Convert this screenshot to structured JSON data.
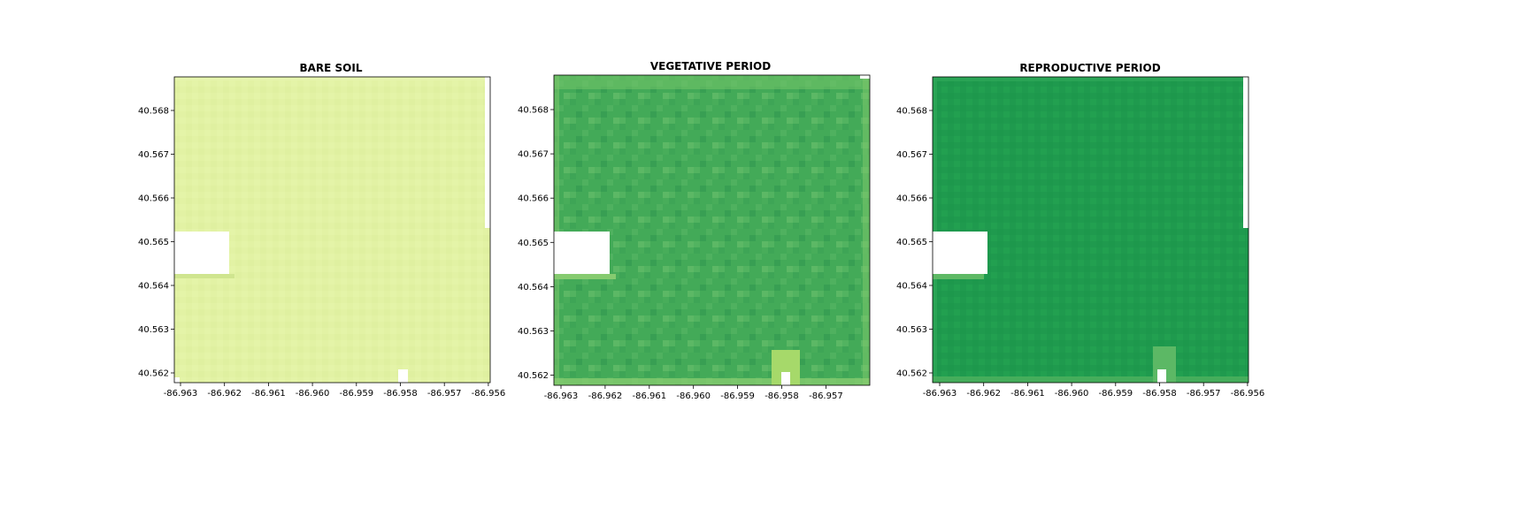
{
  "chart_data": [
    {
      "type": "heatmap",
      "title": "BARE SOIL",
      "xlabel": "",
      "ylabel": "",
      "xlim": [
        -86.9631,
        -86.9559
      ],
      "ylim": [
        40.56182,
        40.56876
      ],
      "xticks": [
        "-86.963",
        "-86.962",
        "-86.961",
        "-86.960",
        "-86.959",
        "-86.958",
        "-86.957",
        "-86.956"
      ],
      "yticks": [
        "40.568",
        "40.567",
        "40.566",
        "40.565",
        "40.564",
        "40.563",
        "40.562"
      ],
      "colormap": "RdYlGn",
      "dominant_color": "#e0f0a0",
      "no_data_regions": [
        {
          "x": [
            -86.9631,
            -86.9619
          ],
          "y": [
            40.56428,
            40.56523
          ]
        },
        {
          "x": [
            -86.9581,
            -86.9579
          ],
          "y": [
            40.56182,
            40.5621
          ]
        },
        {
          "x": [
            -86.9561,
            -86.9559
          ],
          "y": [
            40.5653,
            40.56876
          ]
        }
      ]
    },
    {
      "type": "heatmap",
      "title": "VEGETATIVE PERIOD",
      "xlabel": "",
      "ylabel": "",
      "xlim": [
        -86.9631,
        -86.9559
      ],
      "ylim": [
        40.56182,
        40.56876
      ],
      "xticks": [
        "-86.963",
        "-86.962",
        "-86.961",
        "-86.960",
        "-86.959",
        "-86.958",
        "-86.957"
      ],
      "yticks": [
        "40.568",
        "40.567",
        "40.566",
        "40.565",
        "40.564",
        "40.563",
        "40.562"
      ],
      "colormap": "RdYlGn",
      "dominant_color": "#41a957",
      "no_data_regions": [
        {
          "x": [
            -86.9631,
            -86.9619
          ],
          "y": [
            40.56428,
            40.56523
          ]
        },
        {
          "x": [
            -86.9581,
            -86.9579
          ],
          "y": [
            40.56182,
            40.5621
          ]
        }
      ]
    },
    {
      "type": "heatmap",
      "title": "REPRODUCTIVE PERIOD",
      "xlabel": "",
      "ylabel": "",
      "xlim": [
        -86.9631,
        -86.9559
      ],
      "ylim": [
        40.56182,
        40.56876
      ],
      "xticks": [
        "-86.963",
        "-86.962",
        "-86.961",
        "-86.960",
        "-86.959",
        "-86.958",
        "-86.957",
        "-86.956"
      ],
      "yticks": [
        "40.568",
        "40.567",
        "40.566",
        "40.565",
        "40.564",
        "40.563",
        "40.562"
      ],
      "colormap": "RdYlGn",
      "dominant_color": "#1e9a4f",
      "no_data_regions": [
        {
          "x": [
            -86.9631,
            -86.9619
          ],
          "y": [
            40.56428,
            40.56523
          ]
        },
        {
          "x": [
            -86.9581,
            -86.9579
          ],
          "y": [
            40.56182,
            40.5621
          ]
        },
        {
          "x": [
            -86.9561,
            -86.9559
          ],
          "y": [
            40.5653,
            40.56876
          ]
        }
      ]
    }
  ]
}
